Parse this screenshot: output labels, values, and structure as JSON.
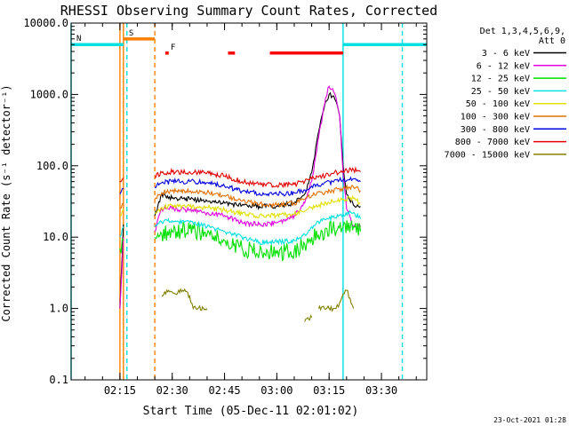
{
  "chart_data": {
    "type": "line",
    "title": "RHESSI Observing Summary Count Rates, Corrected",
    "xlabel": "Start Time (05-Dec-11 02:01:02)",
    "ylabel": "Corrected Count Rate (s⁻¹ detector⁻¹)",
    "yscale": "log",
    "ylim": [
      0.1,
      10000
    ],
    "xlim_minutes": [
      "02:01",
      "03:43"
    ],
    "y_ticks": [
      {
        "value": 0.1,
        "label": "0.1"
      },
      {
        "value": 1,
        "label": "1.0"
      },
      {
        "value": 10,
        "label": "10.0"
      },
      {
        "value": 100,
        "label": "100.0"
      },
      {
        "value": 1000,
        "label": "1000.0"
      },
      {
        "value": 10000,
        "label": "10000.0"
      }
    ],
    "x_ticks": [
      "02:15",
      "02:30",
      "02:45",
      "03:00",
      "03:15",
      "03:30"
    ],
    "legend_header": [
      "Det 1,3,4,5,6,9,",
      "Att 0"
    ],
    "legend_placement": "top-right",
    "footer_date": "23-Oct-2021 01:28",
    "series": [
      {
        "name": "3 - 6 keV",
        "color": "#000000",
        "segments": [
          {
            "t": [
              "02:15",
              "02:16"
            ],
            "v": [
              1,
              15
            ]
          },
          {
            "t": [
              "02:25",
              "02:27",
              "02:30",
              "02:35",
              "02:40",
              "02:45",
              "02:50",
              "02:55",
              "03:00",
              "03:05",
              "03:08",
              "03:10",
              "03:12",
              "03:14",
              "03:15",
              "03:16",
              "03:17",
              "03:18",
              "03:19",
              "03:20",
              "03:22",
              "03:24"
            ],
            "v": [
              20,
              40,
              35,
              34,
              32,
              30,
              28,
              27,
              27,
              30,
              40,
              80,
              300,
              800,
              1000,
              950,
              800,
              500,
              100,
              40,
              28,
              27
            ]
          }
        ]
      },
      {
        "name": "6 - 12 keV",
        "color": "#e000e0",
        "segments": [
          {
            "t": [
              "02:15",
              "02:16"
            ],
            "v": [
              1,
              10
            ]
          },
          {
            "t": [
              "02:25",
              "02:27",
              "02:30",
              "02:35",
              "02:40",
              "02:45",
              "02:50",
              "02:55",
              "03:00",
              "03:05",
              "03:08",
              "03:10",
              "03:12",
              "03:14",
              "03:15",
              "03:16",
              "03:17",
              "03:18",
              "03:19",
              "03:20",
              "03:22",
              "03:24"
            ],
            "v": [
              12,
              25,
              25,
              24,
              22,
              20,
              16,
              15,
              16,
              20,
              30,
              60,
              250,
              900,
              1300,
              1200,
              900,
              500,
              80,
              25,
              14,
              14
            ]
          }
        ]
      },
      {
        "name": "12 - 25 keV",
        "color": "#00e000",
        "segments": [
          {
            "t": [
              "02:15",
              "02:16"
            ],
            "v": [
              7,
              9
            ]
          },
          {
            "t": [
              "02:25",
              "02:27",
              "02:30",
              "02:35",
              "02:40",
              "02:45",
              "02:50",
              "02:55",
              "03:00",
              "03:05",
              "03:08",
              "03:10",
              "03:13",
              "03:16",
              "03:19",
              "03:22",
              "03:24"
            ],
            "v": [
              10,
              11,
              12,
              13,
              11,
              9,
              7,
              6,
              6,
              6.5,
              8,
              10,
              12,
              13,
              14,
              14,
              12
            ]
          }
        ]
      },
      {
        "name": "25 - 50 keV",
        "color": "#00e0e0",
        "segments": [
          {
            "t": [
              "02:15",
              "02:16"
            ],
            "v": [
              10,
              14
            ]
          },
          {
            "t": [
              "02:25",
              "02:27",
              "02:30",
              "02:35",
              "02:40",
              "02:45",
              "02:50",
              "02:55",
              "03:00",
              "03:05",
              "03:08",
              "03:10",
              "03:13",
              "03:16",
              "03:19",
              "03:22",
              "03:24"
            ],
            "v": [
              14,
              16,
              17,
              16,
              14,
              12,
              10,
              8.5,
              8.5,
              9,
              11,
              14,
              17,
              19,
              21,
              22,
              18
            ]
          }
        ]
      },
      {
        "name": "50 - 100 keV",
        "color": "#e0e000",
        "segments": [
          {
            "t": [
              "02:15",
              "02:16"
            ],
            "v": [
              20,
              25
            ]
          },
          {
            "t": [
              "02:25",
              "02:27",
              "02:30",
              "02:35",
              "02:40",
              "02:45",
              "02:50",
              "02:55",
              "03:00",
              "03:05",
              "03:08",
              "03:10",
              "03:13",
              "03:16",
              "03:19",
              "03:22",
              "03:24"
            ],
            "v": [
              22,
              26,
              27,
              27,
              26,
              24,
              21,
              20,
              20,
              21,
              23,
              26,
              29,
              32,
              34,
              35,
              30
            ]
          }
        ]
      },
      {
        "name": "100 - 300 keV",
        "color": "#e07000",
        "segments": [
          {
            "t": [
              "02:15",
              "02:16"
            ],
            "v": [
              25,
              30
            ]
          },
          {
            "t": [
              "02:25",
              "02:27",
              "02:30",
              "02:35",
              "02:40",
              "02:45",
              "02:50",
              "02:55",
              "03:00",
              "03:05",
              "03:08",
              "03:10",
              "03:13",
              "03:16",
              "03:19",
              "03:22",
              "03:24"
            ],
            "v": [
              35,
              42,
              44,
              44,
              42,
              38,
              32,
              29,
              28,
              30,
              34,
              38,
              42,
              45,
              48,
              50,
              45
            ]
          }
        ]
      },
      {
        "name": "300 - 800 keV",
        "color": "#0000e0",
        "segments": [
          {
            "t": [
              "02:15",
              "02:16"
            ],
            "v": [
              40,
              48
            ]
          },
          {
            "t": [
              "02:25",
              "02:27",
              "02:30",
              "02:35",
              "02:40",
              "02:45",
              "02:50",
              "02:55",
              "03:00",
              "03:05",
              "03:08",
              "03:10",
              "03:13",
              "03:16",
              "03:19",
              "03:22",
              "03:24"
            ],
            "v": [
              50,
              58,
              60,
              60,
              58,
              52,
              44,
              41,
              40,
              42,
              46,
              52,
              56,
              60,
              64,
              66,
              60
            ]
          }
        ]
      },
      {
        "name": "800 - 7000 keV",
        "color": "#e00000",
        "segments": [
          {
            "t": [
              "02:15",
              "02:16"
            ],
            "v": [
              60,
              68
            ]
          },
          {
            "t": [
              "02:25",
              "02:27",
              "02:30",
              "02:35",
              "02:40",
              "02:45",
              "02:50",
              "02:55",
              "03:00",
              "03:05",
              "03:08",
              "03:10",
              "03:13",
              "03:16",
              "03:19",
              "03:22",
              "03:24"
            ],
            "v": [
              70,
              80,
              82,
              82,
              80,
              72,
              60,
              55,
              53,
              55,
              60,
              66,
              72,
              78,
              84,
              88,
              82
            ]
          }
        ]
      },
      {
        "name": "7000 - 15000 keV",
        "color": "#808000",
        "segments": [
          {
            "t": [
              "02:27",
              "02:29",
              "02:31",
              "02:33",
              "02:35",
              "02:36",
              "02:40"
            ],
            "v": [
              1.5,
              1.8,
              1.6,
              1.8,
              1.5,
              1.0,
              1.0
            ]
          },
          {
            "t": [
              "03:08",
              "03:10"
            ],
            "v": [
              0.65,
              0.75
            ]
          },
          {
            "t": [
              "03:12",
              "03:15",
              "03:17",
              "03:18",
              "03:19",
              "03:20",
              "03:21",
              "03:22"
            ],
            "v": [
              1.0,
              1.0,
              1.0,
              1.2,
              1.6,
              1.8,
              1.4,
              1.0
            ]
          }
        ]
      }
    ],
    "flags": [
      {
        "label": "S",
        "color": "#ff8000",
        "t": [
          "02:16",
          "02:25"
        ],
        "level": 6000
      },
      {
        "label": "N",
        "color": "#00e0e0",
        "t": [
          "02:01",
          "02:16"
        ],
        "level": 5000
      },
      {
        "label": "",
        "color": "#00e0e0",
        "t": [
          "03:19",
          "03:43"
        ],
        "level": 5000
      },
      {
        "label": "F",
        "color": "#ff0000",
        "t": [
          "02:28",
          "02:29"
        ],
        "level": 3800
      },
      {
        "label": "",
        "color": "#ff0000",
        "t": [
          "02:46",
          "02:48"
        ],
        "level": 3800
      },
      {
        "label": "",
        "color": "#ff0000",
        "t": [
          "02:58",
          "03:19"
        ],
        "level": 3800
      }
    ],
    "markers": [
      {
        "t": "02:15",
        "color": "#ff8000",
        "style": "solid"
      },
      {
        "t": "02:16",
        "color": "#ff8000",
        "style": "solid"
      },
      {
        "t": "02:17",
        "color": "#00e0e0",
        "style": "dashed"
      },
      {
        "t": "02:25",
        "color": "#ff8000",
        "style": "dashed"
      },
      {
        "t": "02:01",
        "color": "#00e0e0",
        "style": "solid"
      },
      {
        "t": "03:19",
        "color": "#00e0e0",
        "style": "solid"
      },
      {
        "t": "03:36",
        "color": "#00e0e0",
        "style": "dashed"
      }
    ]
  }
}
